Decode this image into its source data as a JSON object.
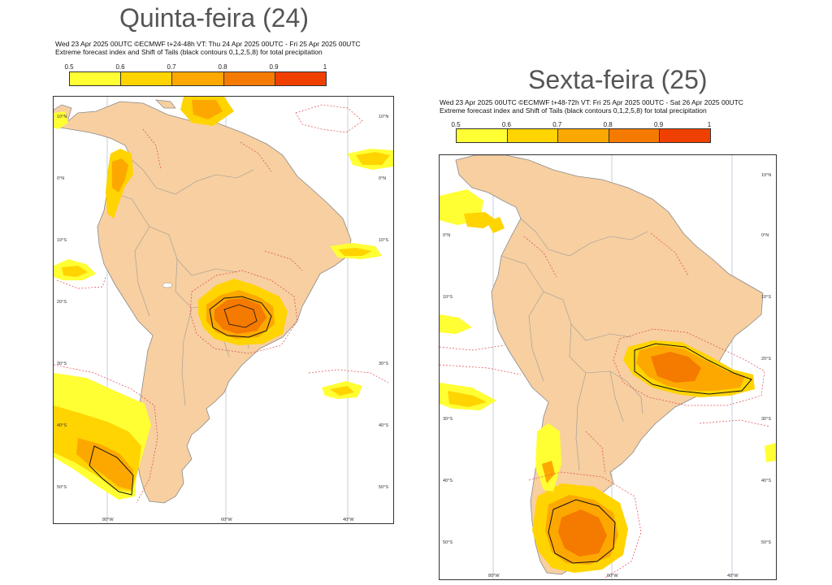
{
  "colors": {
    "ocean": "#ffffff",
    "land": "#f7cfa0",
    "border": "#9a9a9a",
    "contour_red": "#e0444a",
    "contour_black": "#111111",
    "efi_levels": [
      "#ffff33",
      "#ffd400",
      "#fda800",
      "#f57a00",
      "#f04000",
      "#ee1111"
    ]
  },
  "left_panel": {
    "big_title": "Quinta-feira (24)",
    "header_line1": "Wed 23 Apr 2025 00UTC ©ECMWF t+24-48h  VT: Thu 24 Apr 2025 00UTC - Fri 25 Apr 2025 00UTC",
    "header_line2": "Extreme forecast index and Shift of Tails (black contours 0,1,2,5,8) for total precipitation",
    "colorbar_ticks": [
      "0.5",
      "0.6",
      "0.7",
      "0.8",
      "0.9",
      "1"
    ],
    "lon_labels": [
      "80°W",
      "60°W",
      "40°W"
    ],
    "lat_labels": [
      "10°N",
      "0°N",
      "10°S",
      "20°S",
      "30°S",
      "40°S",
      "50°S"
    ]
  },
  "right_panel": {
    "big_title": "Sexta-feira (25)",
    "header_line1": "Wed 23 Apr 2025 00UTC ©ECMWF t+48-72h  VT: Fri 25 Apr 2025 00UTC - Sat 26 Apr 2025 00UTC",
    "header_line2": "Extreme forecast index and Shift of Tails (black contours 0,1,2,5,8) for total precipitation",
    "colorbar_ticks": [
      "0.5",
      "0.6",
      "0.7",
      "0.8",
      "0.9",
      "1"
    ],
    "lon_labels": [
      "80°W",
      "60°W",
      "40°W"
    ],
    "lat_labels": [
      "10°N",
      "0°N",
      "10°S",
      "20°S",
      "30°S",
      "40°S",
      "50°S"
    ]
  }
}
